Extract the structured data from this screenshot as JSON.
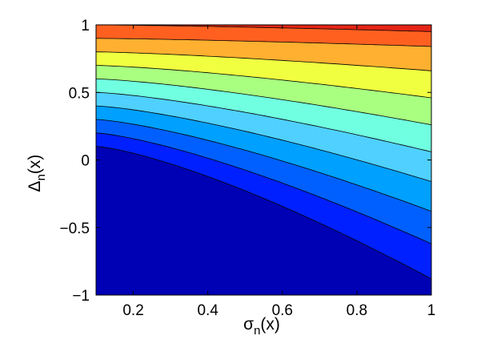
{
  "chart_data": {
    "type": "contourf",
    "colormap": "jet",
    "x": {
      "range": [
        0.1,
        1
      ],
      "ticks": [
        {
          "value": 0.2,
          "label": "0.2"
        },
        {
          "value": 0.4,
          "label": "0.4"
        },
        {
          "value": 0.6,
          "label": "0.6"
        },
        {
          "value": 0.8,
          "label": "0.8"
        },
        {
          "value": 1.0,
          "label": "1"
        }
      ],
      "label_main": "σ",
      "label_sub": "n",
      "label_tail": "(x)"
    },
    "y": {
      "range": [
        -1,
        1
      ],
      "ticks": [
        {
          "value": -1,
          "label": "−1"
        },
        {
          "value": -0.5,
          "label": "−0.5"
        },
        {
          "value": 0,
          "label": "0"
        },
        {
          "value": 0.5,
          "label": "0.5"
        },
        {
          "value": 1,
          "label": "1"
        }
      ],
      "label_main": "Δ",
      "label_sub": "n",
      "label_tail": "(x)"
    },
    "levels": [
      {
        "y_at_x0": 0.1,
        "y_at_x1": -0.88,
        "color": "#0000b4"
      },
      {
        "y_at_x0": 0.2,
        "y_at_x1": -0.62,
        "color": "#0020ff"
      },
      {
        "y_at_x0": 0.3,
        "y_at_x1": -0.38,
        "color": "#0060ff"
      },
      {
        "y_at_x0": 0.4,
        "y_at_x1": -0.16,
        "color": "#00a0ff"
      },
      {
        "y_at_x0": 0.5,
        "y_at_x1": 0.06,
        "color": "#4fd0ff"
      },
      {
        "y_at_x0": 0.6,
        "y_at_x1": 0.26,
        "color": "#70ffe0"
      },
      {
        "y_at_x0": 0.7,
        "y_at_x1": 0.46,
        "color": "#a8ff80"
      },
      {
        "y_at_x0": 0.8,
        "y_at_x1": 0.66,
        "color": "#f0ff40"
      },
      {
        "y_at_x0": 0.9,
        "y_at_x1": 0.84,
        "color": "#ffb030"
      },
      {
        "y_at_x0": 1.0,
        "y_at_x1": 0.95,
        "color": "#ff6020"
      },
      {
        "y_at_x0": 1.06,
        "y_at_x1": 1.05,
        "color": "#e52516"
      }
    ],
    "top_fill_color": "#7a0000",
    "grid": false,
    "legend": "none"
  }
}
